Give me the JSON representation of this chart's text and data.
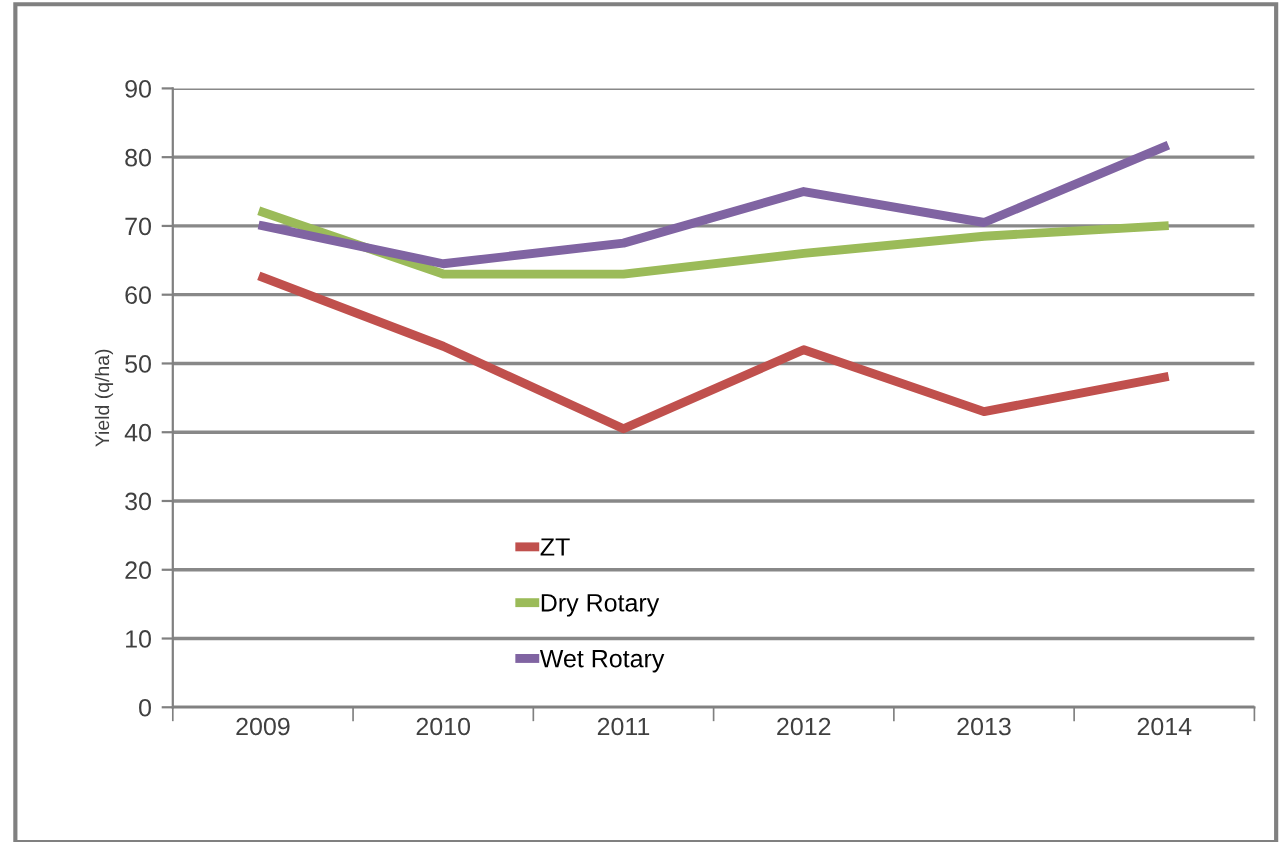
{
  "chart_data": {
    "type": "line",
    "ylabel": "Yield (q/ha)",
    "categories": [
      "2009",
      "2010",
      "2011",
      "2012",
      "2013",
      "2014"
    ],
    "series": [
      {
        "name": "ZT",
        "color": "#c0504d",
        "values": [
          62.5,
          52.5,
          40.5,
          52,
          43,
          48
        ]
      },
      {
        "name": "Dry Rotary",
        "color": "#9bbb59",
        "values": [
          72,
          63,
          63,
          66,
          68.5,
          70
        ]
      },
      {
        "name": "Wet Rotary",
        "color": "#8064a2",
        "values": [
          70,
          64.5,
          67.5,
          75,
          70.5,
          81.5
        ]
      }
    ],
    "ylim": [
      0,
      90
    ],
    "yticks": [
      0,
      10,
      20,
      30,
      40,
      50,
      60,
      70,
      80,
      90
    ],
    "grid": "y",
    "legend": "bottom",
    "marker": "none",
    "line_style": "solid"
  }
}
